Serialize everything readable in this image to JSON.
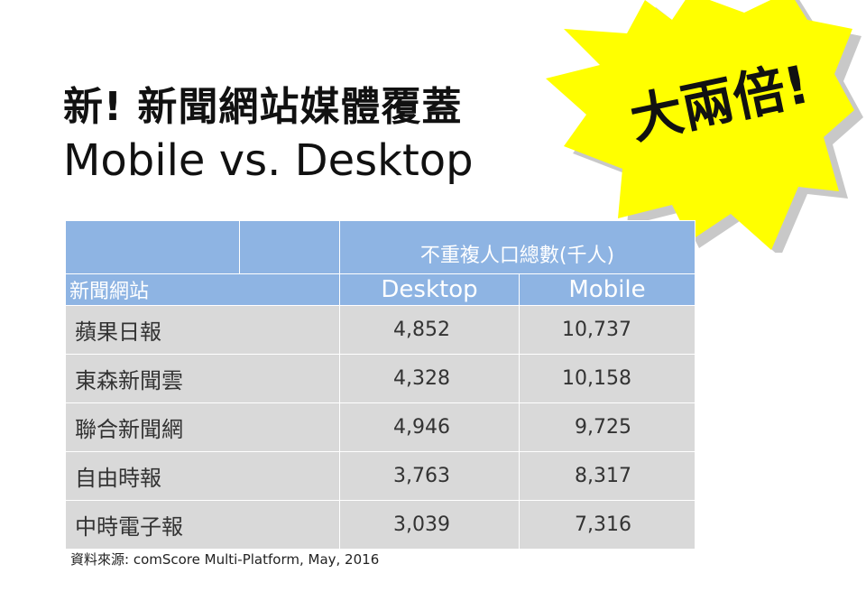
{
  "title": {
    "line1": "新! 新聞網站媒體覆蓋",
    "line2": "Mobile vs. Desktop"
  },
  "callout": {
    "text": "大兩倍!",
    "color": "#ffff00"
  },
  "table": {
    "group_header": "不重複人口總數(千人)",
    "columns": [
      "新聞網站",
      "Desktop",
      "Mobile"
    ],
    "rows": [
      {
        "site": "蘋果日報",
        "desktop": "4,852",
        "mobile": "10,737"
      },
      {
        "site": "東森新聞雲",
        "desktop": "4,328",
        "mobile": "10,158"
      },
      {
        "site": "聯合新聞網",
        "desktop": "4,946",
        "mobile": "9,725"
      },
      {
        "site": "自由時報",
        "desktop": "3,763",
        "mobile": "8,317"
      },
      {
        "site": "中時電子報",
        "desktop": "3,039",
        "mobile": "7,316"
      }
    ],
    "header_color": "#8eb4e3",
    "row_color": "#d9d9d9"
  },
  "source": "資料來源: comScore Multi-Platform, May, 2016"
}
